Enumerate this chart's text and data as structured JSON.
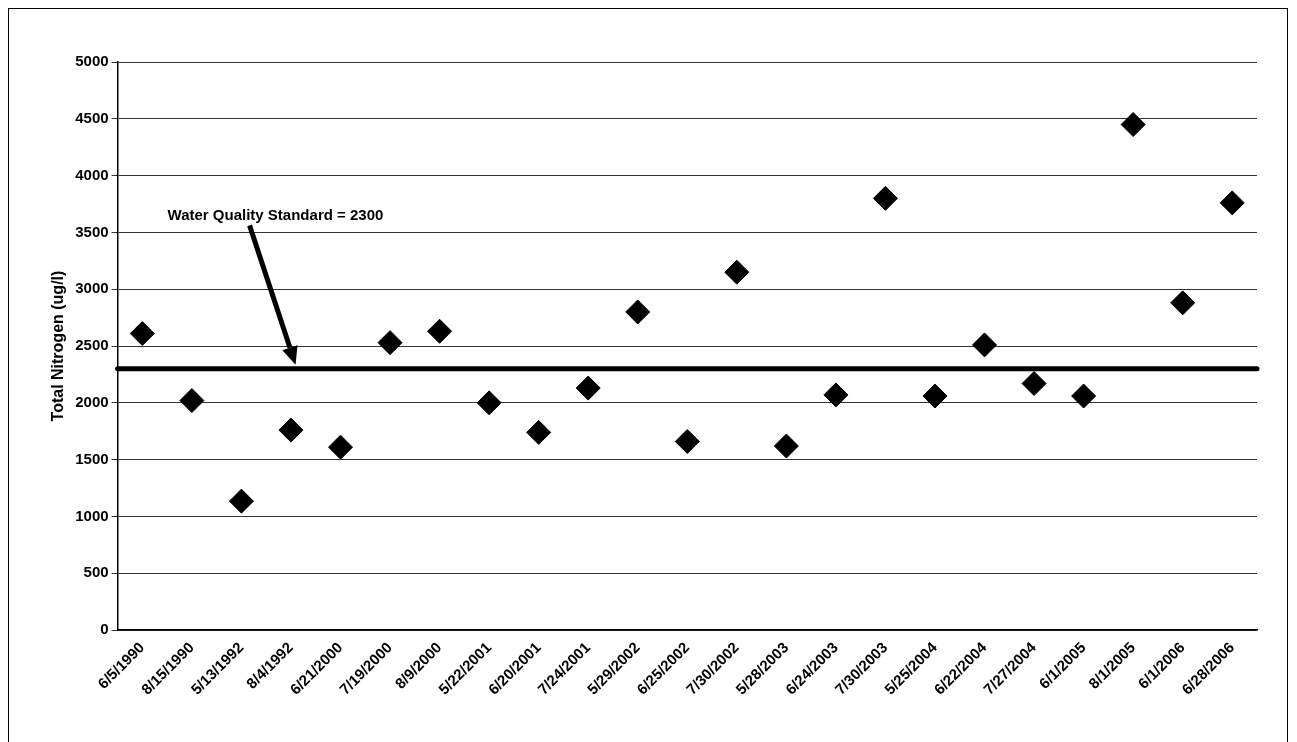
{
  "chart_data": {
    "type": "scatter",
    "ylabel": "Total Nitrogen (ug/l)",
    "categories": [
      "6/5/1990",
      "8/15/1990",
      "5/13/1992",
      "8/4/1992",
      "6/21/2000",
      "7/19/2000",
      "8/9/2000",
      "5/22/2001",
      "6/20/2001",
      "7/24/2001",
      "5/29/2002",
      "6/25/2002",
      "7/30/2002",
      "5/28/2003",
      "6/24/2003",
      "7/30/2003",
      "5/25/2004",
      "6/22/2004",
      "7/27/2004",
      "6/1/2005",
      "8/1/2005",
      "6/1/2006",
      "6/28/2006"
    ],
    "series": [
      {
        "color": "#000000",
        "values": [
          2610,
          2020,
          1135,
          1760,
          1610,
          2530,
          2630,
          2000,
          1740,
          2130,
          2800,
          1660,
          3150,
          1620,
          2070,
          3800,
          2060,
          2510,
          2170,
          2060,
          4450,
          2880,
          3760
        ]
      }
    ],
    "ylim": [
      0,
      5000
    ],
    "yticks": [
      0,
      500,
      1000,
      1500,
      2000,
      2500,
      3000,
      3500,
      4000,
      4500,
      5000
    ],
    "grid": "y",
    "legend": false,
    "marker": "diamond",
    "ref_lines": [
      {
        "axis": "y",
        "value": 2300,
        "label": "Water Quality Standard = 2300",
        "color": "#000000"
      }
    ]
  }
}
